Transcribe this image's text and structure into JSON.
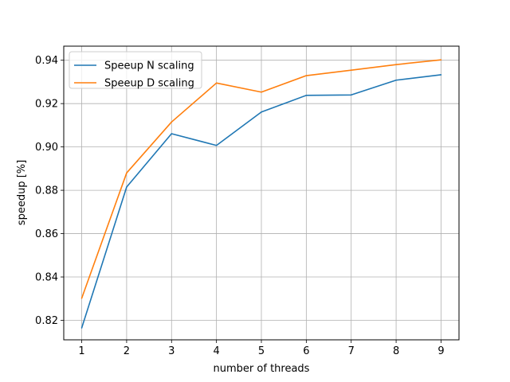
{
  "chart_data": {
    "type": "line",
    "title": "",
    "xlabel": "number of threads",
    "ylabel": "speedup [%]",
    "x": [
      1,
      2,
      3,
      4,
      5,
      6,
      7,
      8,
      9
    ],
    "xticks": [
      1,
      2,
      3,
      4,
      5,
      6,
      7,
      8,
      9
    ],
    "yticks": [
      0.82,
      0.84,
      0.86,
      0.88,
      0.9,
      0.92,
      0.94
    ],
    "xlim": [
      0.6,
      9.4
    ],
    "ylim": [
      0.811,
      0.9465
    ],
    "grid": true,
    "legend_position": "top-left",
    "series": [
      {
        "name": "Speeup N scaling",
        "color": "#1f77b4",
        "values": [
          0.8165,
          0.8815,
          0.9061,
          0.9007,
          0.9161,
          0.9238,
          0.924,
          0.9308,
          0.9333
        ]
      },
      {
        "name": "Speeup D scaling",
        "color": "#ff7f0e",
        "values": [
          0.8302,
          0.888,
          0.9115,
          0.9295,
          0.9253,
          0.9329,
          0.9354,
          0.938,
          0.9402
        ]
      }
    ]
  }
}
